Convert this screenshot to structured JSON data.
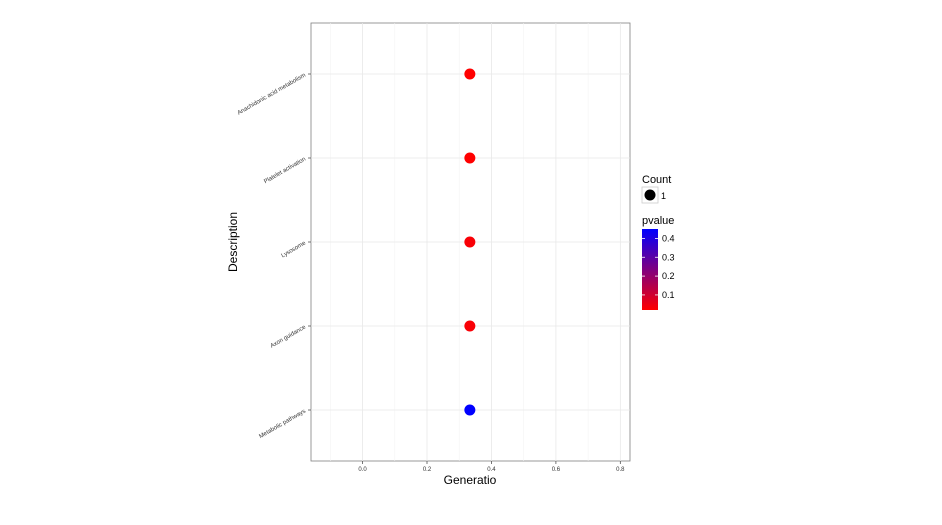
{
  "chart_data": {
    "type": "scatter",
    "title": "",
    "xlabel": "Generatio",
    "ylabel": "Description",
    "xlim": [
      -0.16,
      0.83
    ],
    "x_ticks": [
      "0.0",
      "0.2",
      "0.4",
      "0.6",
      "0.8"
    ],
    "x_tick_values": [
      0.0,
      0.2,
      0.4,
      0.6,
      0.8
    ],
    "grid": true,
    "legend_position": "right",
    "categories": [
      "Anachidonic acid metabolism",
      "Platelet activation",
      "Lysosome",
      "Axon guidance",
      "Metabolic pathways"
    ],
    "points": [
      {
        "category": "Anachidonic acid metabolism",
        "x": 0.333,
        "count": 1,
        "pvalue": 0.02
      },
      {
        "category": "Platelet activation",
        "x": 0.333,
        "count": 1,
        "pvalue": 0.02
      },
      {
        "category": "Lysosome",
        "x": 0.333,
        "count": 1,
        "pvalue": 0.03
      },
      {
        "category": "Axon guidance",
        "x": 0.333,
        "count": 1,
        "pvalue": 0.03
      },
      {
        "category": "Metabolic pathways",
        "x": 0.333,
        "count": 1,
        "pvalue": 0.45
      }
    ],
    "size_legend": {
      "title": "Count",
      "labels": [
        "1"
      ]
    },
    "color_legend": {
      "title": "pvalue",
      "labels": [
        "0.4",
        "0.3",
        "0.2",
        "0.1"
      ],
      "label_values": [
        0.4,
        0.3,
        0.2,
        0.1
      ],
      "range": [
        0.02,
        0.45
      ],
      "low_color": "#ff0000",
      "high_color": "#0000ff"
    }
  }
}
